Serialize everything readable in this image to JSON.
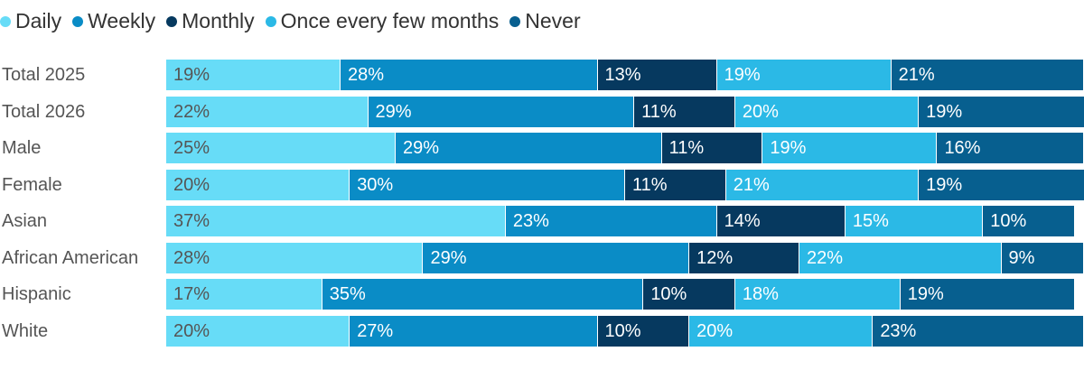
{
  "chart_data": {
    "type": "bar",
    "orientation": "horizontal",
    "stacked": true,
    "title": "",
    "xlabel": "",
    "ylabel": "",
    "legend_position": "top-left",
    "grid": false,
    "value_suffix": "%",
    "categories": [
      "Total 2025",
      "Total 2026",
      "Male",
      "Female",
      "Asian",
      "African American",
      "Hispanic",
      "White"
    ],
    "series": [
      {
        "name": "Daily",
        "color": "#67dcf7",
        "label_color": "#555555",
        "values": [
          19,
          22,
          25,
          20,
          37,
          28,
          17,
          20
        ]
      },
      {
        "name": "Weekly",
        "color": "#0a8cc6",
        "label_color": "#ffffff",
        "values": [
          28,
          29,
          29,
          30,
          23,
          29,
          35,
          27
        ]
      },
      {
        "name": "Monthly",
        "color": "#06395f",
        "label_color": "#ffffff",
        "values": [
          13,
          11,
          11,
          11,
          14,
          12,
          10,
          10
        ]
      },
      {
        "name": "Once every few months",
        "color": "#2bb9e6",
        "label_color": "#ffffff",
        "values": [
          19,
          20,
          19,
          21,
          15,
          22,
          18,
          20
        ]
      },
      {
        "name": "Never",
        "color": "#075f8f",
        "label_color": "#ffffff",
        "values": [
          21,
          19,
          16,
          19,
          10,
          9,
          19,
          23
        ]
      }
    ]
  }
}
